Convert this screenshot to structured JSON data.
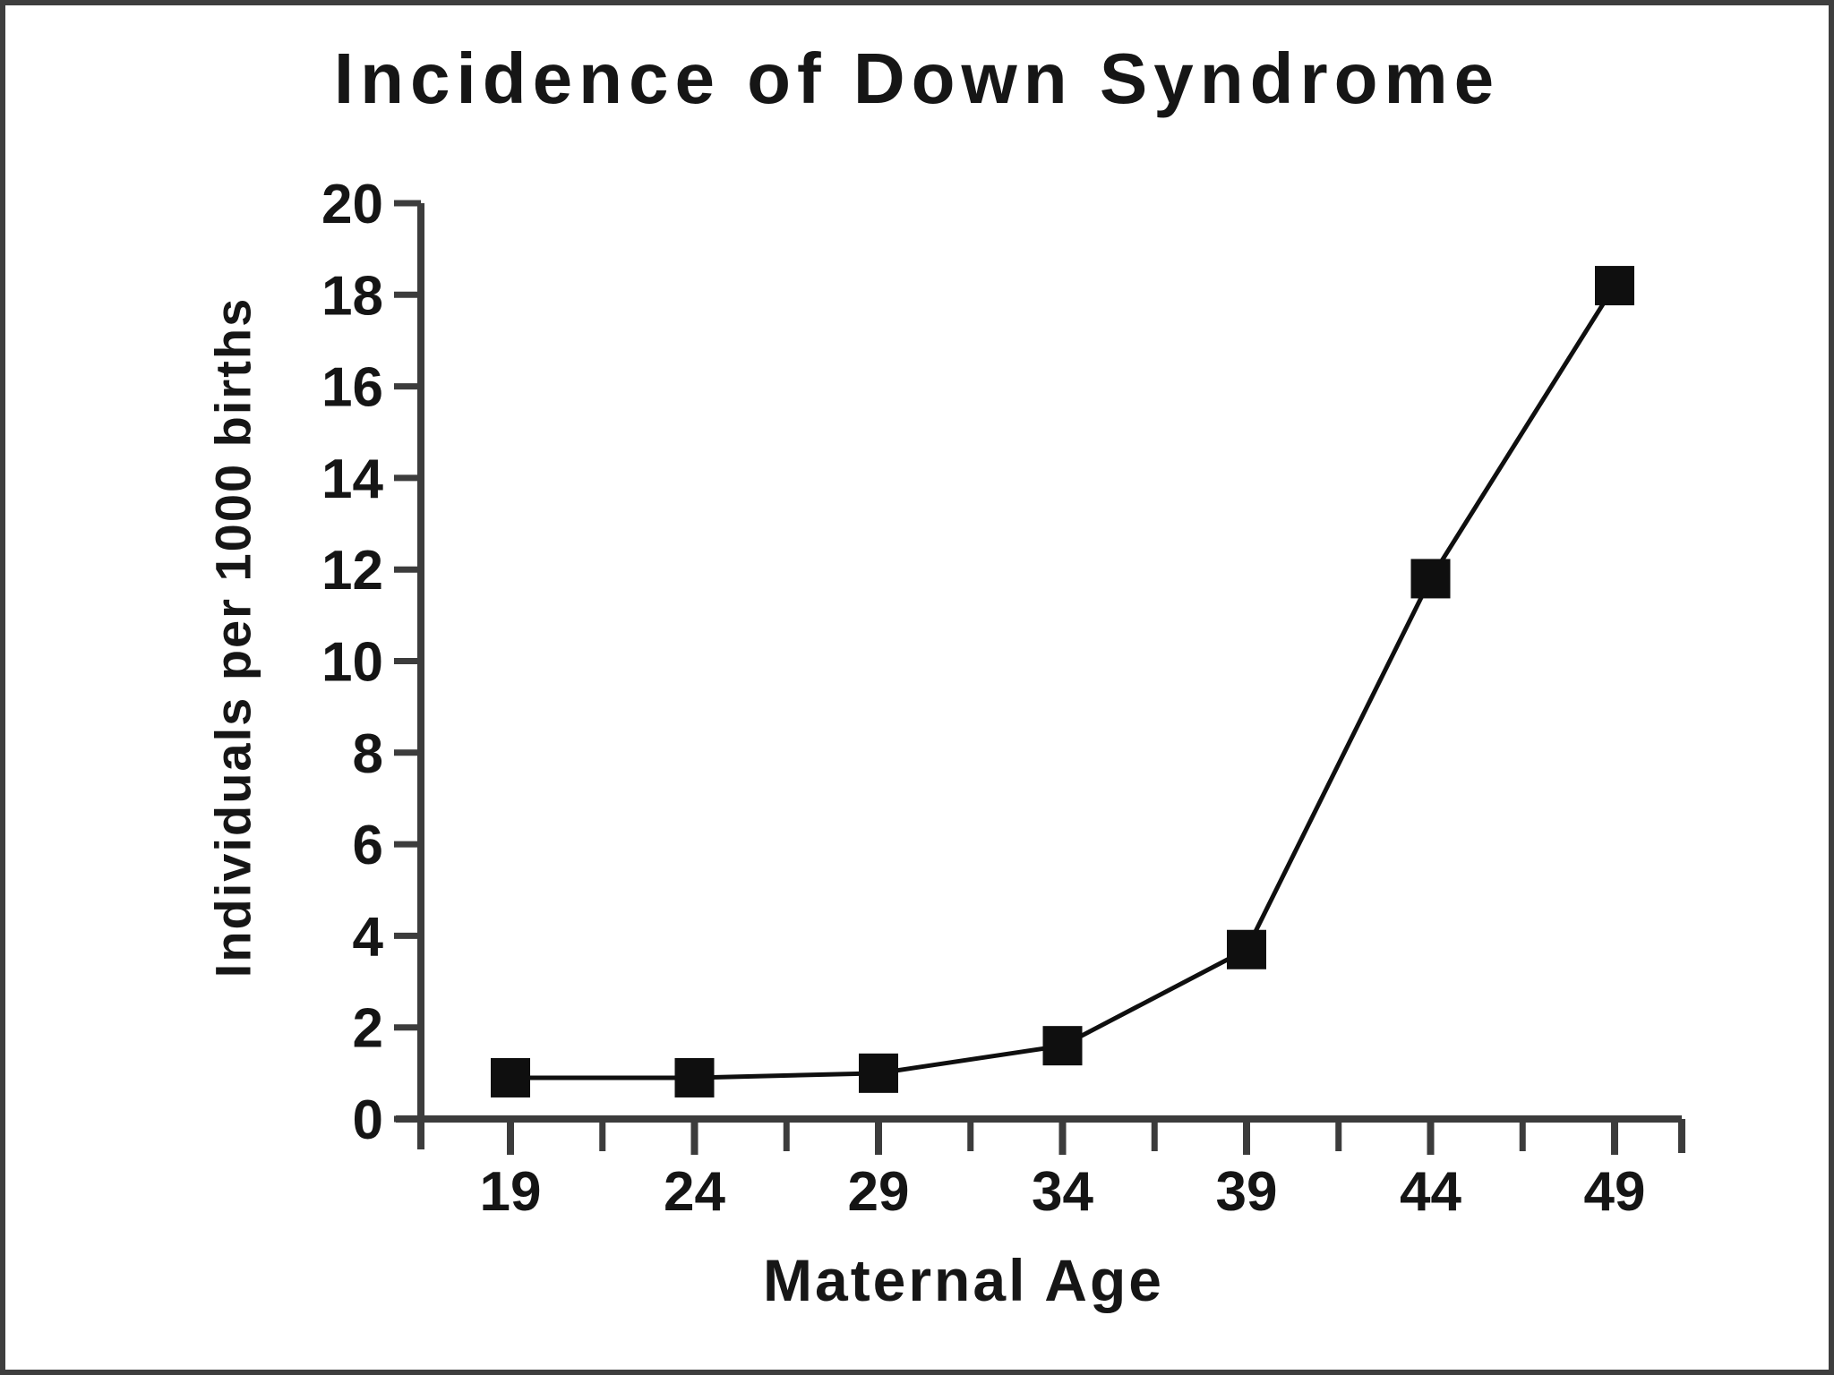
{
  "frame": {
    "border_color": "#3e3e3e",
    "background": "#ffffff"
  },
  "chart_data": {
    "type": "line",
    "title": "Incidence of Down Syndrome",
    "xlabel": "Maternal Age",
    "ylabel": "Individuals per 1000 births",
    "x": [
      19,
      24,
      29,
      34,
      39,
      44,
      49
    ],
    "x_tick_labels": [
      "19",
      "24",
      "29",
      "34",
      "39",
      "44",
      "49"
    ],
    "series": [
      {
        "name": "Incidence of Down Syndrome",
        "values": [
          0.9,
          0.9,
          1.0,
          1.6,
          3.7,
          11.8,
          18.2
        ]
      }
    ],
    "y_ticks": [
      0,
      2,
      4,
      6,
      8,
      10,
      12,
      14,
      16,
      18,
      20
    ],
    "ylim": [
      0,
      20
    ],
    "grid": false,
    "legend": null,
    "marker": "square",
    "x_minor_ticks_between_majors": true,
    "colors": {
      "line": "#0f0f0f",
      "marker": "#0f0f0f",
      "axis": "#3c3c3c",
      "text": "#151515"
    }
  }
}
